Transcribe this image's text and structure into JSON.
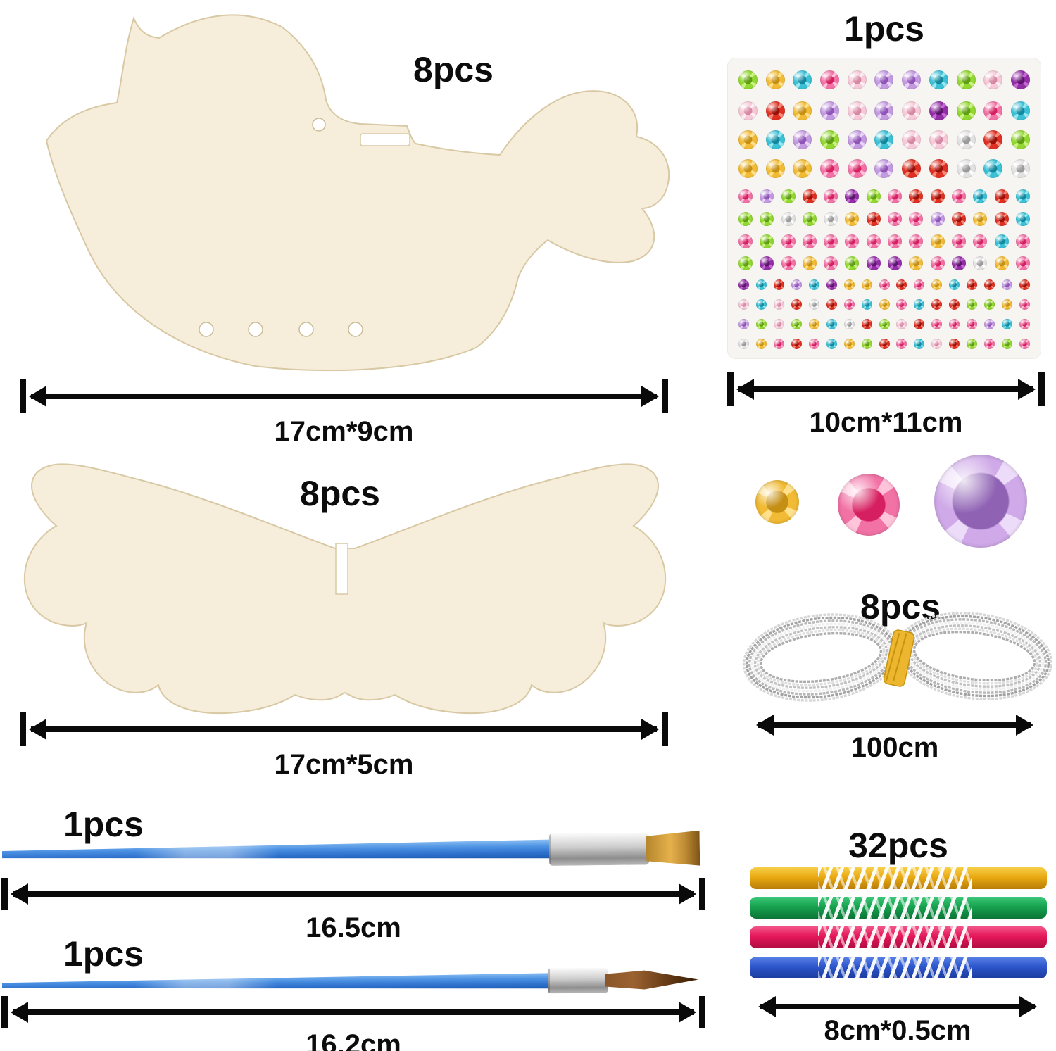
{
  "page": {
    "background": "#ffffff"
  },
  "wood": {
    "fill": "#f6eeda",
    "edge": "#d8c8a4"
  },
  "accent_black": "#0a0a0a",
  "items": {
    "bird": {
      "count_label": "8pcs",
      "dimension_label": "17cm*9cm"
    },
    "gem_sheet": {
      "count_label": "1pcs",
      "dimension_label": "10cm*11cm",
      "rows": [
        {
          "size": 27,
          "colors": [
            "green",
            "gold",
            "teal",
            "pink",
            "lightpink",
            "lavender",
            "lavender",
            "teal",
            "green",
            "lightpink",
            "purple"
          ]
        },
        {
          "size": 27,
          "colors": [
            "lightpink",
            "red",
            "gold",
            "lavender",
            "lightpink",
            "lavender",
            "lightpink",
            "purple",
            "green",
            "pink",
            "teal"
          ]
        },
        {
          "size": 27,
          "colors": [
            "gold",
            "teal",
            "lavender",
            "green",
            "lavender",
            "teal",
            "lightpink",
            "lightpink",
            "silver",
            "red",
            "green"
          ]
        },
        {
          "size": 27,
          "colors": [
            "gold",
            "gold",
            "gold",
            "pink",
            "pink",
            "lavender",
            "red",
            "red",
            "silver",
            "teal",
            "silver"
          ]
        },
        {
          "size": 20,
          "colors": [
            "pink",
            "lavender",
            "green",
            "red",
            "pink",
            "purple",
            "green",
            "pink",
            "red",
            "red",
            "pink",
            "teal",
            "red",
            "teal"
          ]
        },
        {
          "size": 20,
          "colors": [
            "green",
            "green",
            "silver",
            "green",
            "silver",
            "gold",
            "red",
            "pink",
            "pink",
            "lavender",
            "red",
            "gold",
            "red",
            "teal"
          ]
        },
        {
          "size": 20,
          "colors": [
            "pink",
            "green",
            "pink",
            "pink",
            "pink",
            "pink",
            "pink",
            "pink",
            "pink",
            "gold",
            "pink",
            "pink",
            "teal",
            "pink"
          ]
        },
        {
          "size": 20,
          "colors": [
            "green",
            "purple",
            "pink",
            "gold",
            "pink",
            "green",
            "purple",
            "purple",
            "gold",
            "pink",
            "purple",
            "silver",
            "gold",
            "pink"
          ]
        },
        {
          "size": 15,
          "colors": [
            "purple",
            "teal",
            "red",
            "lavender",
            "teal",
            "purple",
            "gold",
            "gold",
            "pink",
            "red",
            "pink",
            "gold",
            "teal",
            "red",
            "red",
            "lavender",
            "red"
          ]
        },
        {
          "size": 15,
          "colors": [
            "lightpink",
            "teal",
            "lightpink",
            "red",
            "silver",
            "red",
            "pink",
            "teal",
            "gold",
            "pink",
            "teal",
            "red",
            "red",
            "green",
            "green",
            "gold",
            "pink"
          ]
        },
        {
          "size": 15,
          "colors": [
            "lavender",
            "green",
            "lightpink",
            "green",
            "gold",
            "teal",
            "silver",
            "red",
            "green",
            "lightpink",
            "red",
            "pink",
            "pink",
            "pink",
            "lavender",
            "teal",
            "pink"
          ]
        },
        {
          "size": 15,
          "colors": [
            "silver",
            "gold",
            "pink",
            "red",
            "pink",
            "teal",
            "gold",
            "green",
            "red",
            "pink",
            "teal",
            "lightpink",
            "red",
            "green",
            "pink",
            "green",
            "pink"
          ]
        }
      ]
    },
    "wings": {
      "count_label": "8pcs",
      "dimension_label": "17cm*5cm"
    },
    "gem_samples": [
      {
        "color": "gold",
        "size": 62,
        "dot": "35%"
      },
      {
        "color": "pink",
        "size": 88,
        "dot": "37%"
      },
      {
        "color": "lilac",
        "size": 132,
        "dot": "42%"
      }
    ],
    "cord": {
      "count_label": "8pcs",
      "dimension_label": "100cm",
      "strand_color": "#c6c6c6",
      "tie_color": "#ecb62e"
    },
    "brush_flat": {
      "count_label": "1pcs",
      "dimension_label": "16.5cm",
      "handle_color": "#3a85e0"
    },
    "brush_round": {
      "count_label": "1pcs",
      "dimension_label": "16.2cm",
      "handle_color": "#3a85e0"
    },
    "sticks": {
      "count_label": "32pcs",
      "dimension_label": "8cm*0.5cm",
      "colors": [
        "gold",
        "green",
        "pink",
        "blue"
      ]
    }
  },
  "gem_palette": {
    "green": {
      "base": "#93d832",
      "light": "#cdf386",
      "center": "#5f9e12"
    },
    "gold": {
      "base": "#f2bb35",
      "light": "#ffe18d",
      "center": "#c58f14"
    },
    "teal": {
      "base": "#3bc0d6",
      "light": "#9ae8f2",
      "center": "#12879e"
    },
    "pink": {
      "base": "#f272a6",
      "light": "#ffc3da",
      "center": "#d61f60"
    },
    "lightpink": {
      "base": "#f6c8d8",
      "light": "#fdeef4",
      "center": "#d789a4"
    },
    "lavender": {
      "base": "#c39ae0",
      "light": "#e9d5f7",
      "center": "#8f54b8"
    },
    "lilac": {
      "base": "#cfa9e8",
      "light": "#eddcf9",
      "center": "#8f62b4"
    },
    "purple": {
      "base": "#932fa6",
      "light": "#c66ad4",
      "center": "#5f1270"
    },
    "red": {
      "base": "#e03024",
      "light": "#f58d7b",
      "center": "#9c0f06"
    },
    "silver": {
      "base": "#e2e2e2",
      "light": "#ffffff",
      "center": "#9a9a9a"
    }
  },
  "stick_palette": {
    "gold": {
      "top": "#f8cf4a",
      "mid": "#e9a912",
      "dark": "#b87d08"
    },
    "green": {
      "top": "#3cc878",
      "mid": "#17a24f",
      "dark": "#0c7436"
    },
    "pink": {
      "top": "#f2558a",
      "mid": "#e5175a",
      "dark": "#b00c42"
    },
    "blue": {
      "top": "#5a82e6",
      "mid": "#2d56cc",
      "dark": "#1c3c9e"
    }
  }
}
